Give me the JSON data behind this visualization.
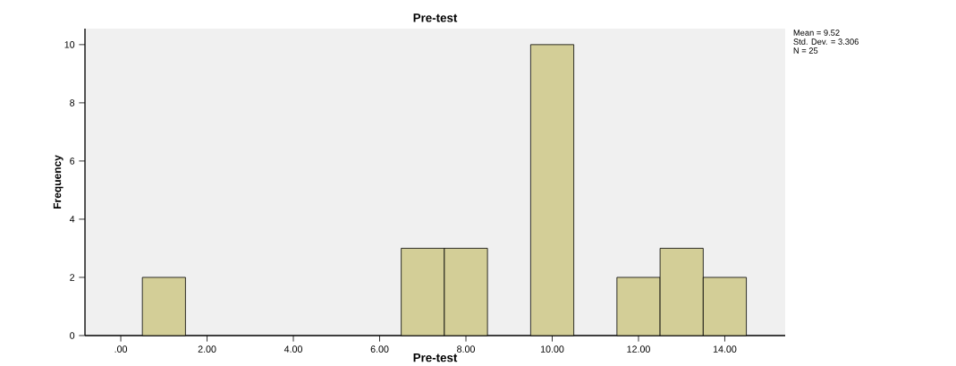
{
  "chart_data": {
    "type": "histogram",
    "title": "Pre-test",
    "xlabel": "Pre-test",
    "ylabel": "Frequency",
    "bins": [
      0.5,
      1.5,
      2.5,
      3.5,
      4.5,
      5.5,
      6.5,
      7.5,
      8.5,
      9.5,
      10.5,
      11.5,
      12.5,
      13.5,
      14.5
    ],
    "values": [
      2,
      0,
      0,
      0,
      0,
      0,
      3,
      3,
      0,
      10,
      0,
      2,
      3,
      2
    ],
    "color": "#d3ce97",
    "xlim": [
      -0.83,
      15.4
    ],
    "ylim": [
      0,
      10.55
    ],
    "xticks": [
      {
        "value": 0,
        "label": ".00"
      },
      {
        "value": 2,
        "label": "2.00"
      },
      {
        "value": 4,
        "label": "4.00"
      },
      {
        "value": 6,
        "label": "6.00"
      },
      {
        "value": 8,
        "label": "8.00"
      },
      {
        "value": 10,
        "label": "10.00"
      },
      {
        "value": 12,
        "label": "12.00"
      },
      {
        "value": 14,
        "label": "14.00"
      }
    ],
    "yticks": [
      0,
      2,
      4,
      6,
      8,
      10
    ],
    "annotations": [
      "Mean = 9.52",
      "Std. Dev. = 3.306",
      "N = 25"
    ]
  }
}
